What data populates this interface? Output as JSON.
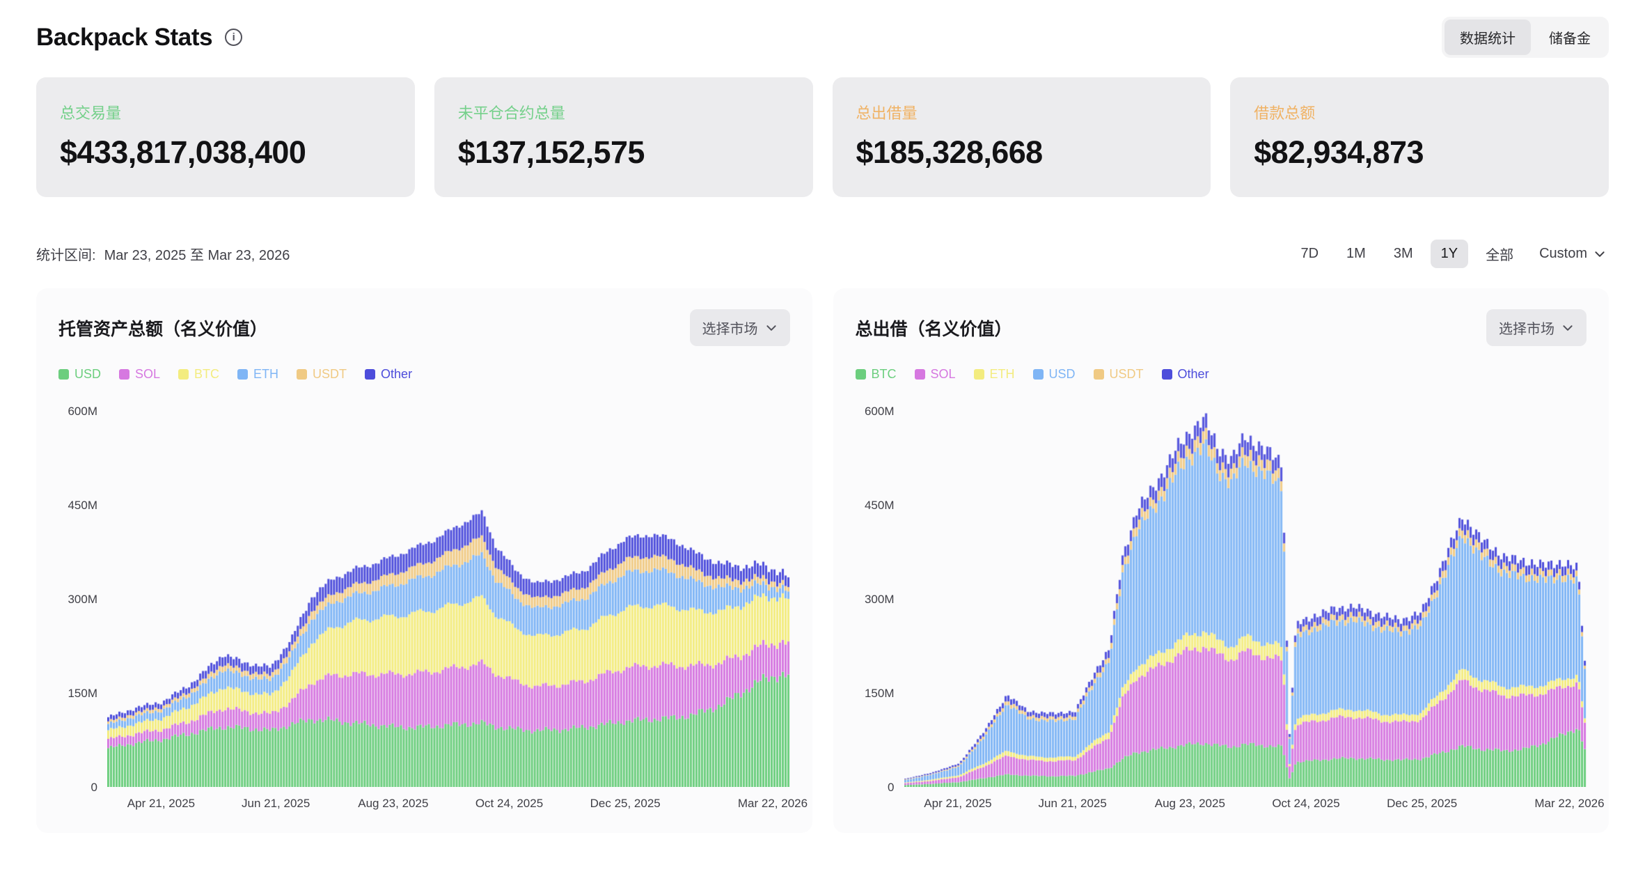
{
  "page": {
    "title": "Backpack Stats"
  },
  "header": {
    "tabs": [
      {
        "label": "数据统计",
        "active": true
      },
      {
        "label": "储备金",
        "active": false
      }
    ]
  },
  "stats": [
    {
      "label": "总交易量",
      "value": "$433,817,038,400",
      "label_color": "#74d08a"
    },
    {
      "label": "未平仓合约总量",
      "value": "$137,152,575",
      "label_color": "#74d08a"
    },
    {
      "label": "总出借量",
      "value": "$185,328,668",
      "label_color": "#f0b264"
    },
    {
      "label": "借款总额",
      "value": "$82,934,873",
      "label_color": "#f0b264"
    }
  ],
  "range_bar": {
    "prefix": "统计区间:",
    "range_text": "Mar 23, 2025 至 Mar 23, 2026",
    "options": [
      "7D",
      "1M",
      "3M",
      "1Y",
      "全部"
    ],
    "selected": "1Y",
    "custom_label": "Custom"
  },
  "chart_data": [
    {
      "type": "stacked_area",
      "title": "托管资产总额（名义价值）",
      "market_selector_label": "选择市场",
      "value_unit": "M",
      "ylim": [
        0,
        600
      ],
      "grid": false,
      "legend_position": "top",
      "y_ticks": [
        {
          "value": 0,
          "label": "0"
        },
        {
          "value": 150,
          "label": "150M"
        },
        {
          "value": 300,
          "label": "300M"
        },
        {
          "value": 450,
          "label": "450M"
        },
        {
          "value": 600,
          "label": "600M"
        }
      ],
      "x_ticks": [
        {
          "f": 0.079,
          "label": "Apr 21, 2025"
        },
        {
          "f": 0.247,
          "label": "Jun 21, 2025"
        },
        {
          "f": 0.419,
          "label": "Aug 23, 2025"
        },
        {
          "f": 0.589,
          "label": "Oct 24, 2025"
        },
        {
          "f": 0.759,
          "label": "Dec 25, 2025"
        },
        {
          "f": 0.975,
          "label": "Mar 22, 2026"
        }
      ],
      "x": [
        0,
        0.04,
        0.08,
        0.12,
        0.15,
        0.17,
        0.2,
        0.24,
        0.27,
        0.3,
        0.33,
        0.36,
        0.4,
        0.42,
        0.45,
        0.48,
        0.52,
        0.55,
        0.57,
        0.6,
        0.63,
        0.67,
        0.7,
        0.73,
        0.76,
        0.8,
        0.83,
        0.86,
        0.9,
        0.93,
        0.96,
        0.99,
        1.0
      ],
      "series": [
        {
          "name": "USD",
          "color": "#6cce7e",
          "values": [
            62,
            70,
            76,
            85,
            92,
            96,
            94,
            90,
            100,
            108,
            106,
            102,
            98,
            96,
            95,
            97,
            100,
            102,
            96,
            92,
            90,
            92,
            95,
            100,
            105,
            108,
            110,
            115,
            130,
            150,
            170,
            180,
            178
          ]
        },
        {
          "name": "SOL",
          "color": "#d678e0",
          "values": [
            14,
            15,
            16,
            20,
            26,
            30,
            27,
            26,
            38,
            60,
            72,
            78,
            82,
            84,
            86,
            88,
            92,
            95,
            85,
            76,
            70,
            72,
            74,
            80,
            85,
            86,
            84,
            78,
            68,
            60,
            55,
            52,
            50
          ]
        },
        {
          "name": "BTC",
          "color": "#f3ec7f",
          "values": [
            14,
            16,
            18,
            24,
            30,
            34,
            31,
            30,
            44,
            64,
            76,
            84,
            90,
            92,
            96,
            98,
            102,
            105,
            94,
            84,
            80,
            82,
            84,
            90,
            95,
            96,
            94,
            88,
            82,
            80,
            78,
            72,
            70
          ]
        },
        {
          "name": "ETH",
          "color": "#7fb5f5",
          "values": [
            10,
            12,
            13,
            18,
            24,
            28,
            25,
            24,
            30,
            38,
            40,
            42,
            46,
            50,
            54,
            58,
            64,
            68,
            56,
            48,
            44,
            46,
            48,
            52,
            56,
            57,
            54,
            48,
            38,
            28,
            20,
            14,
            12
          ]
        },
        {
          "name": "USDT",
          "color": "#f0ca84",
          "values": [
            4,
            5,
            5,
            6,
            8,
            9,
            8,
            8,
            10,
            13,
            14,
            15,
            17,
            18,
            20,
            22,
            26,
            28,
            22,
            18,
            16,
            17,
            18,
            20,
            22,
            22,
            21,
            18,
            14,
            12,
            10,
            8,
            7
          ]
        },
        {
          "name": "Other",
          "color": "#4d4ddb",
          "values": [
            7,
            8,
            8,
            10,
            13,
            15,
            13,
            13,
            16,
            22,
            24,
            25,
            27,
            28,
            30,
            32,
            36,
            40,
            32,
            26,
            24,
            25,
            26,
            30,
            33,
            34,
            32,
            28,
            24,
            22,
            21,
            18,
            16
          ]
        }
      ]
    },
    {
      "type": "stacked_area",
      "title": "总出借（名义价值）",
      "market_selector_label": "选择市场",
      "value_unit": "M",
      "ylim": [
        0,
        600
      ],
      "grid": false,
      "legend_position": "top",
      "y_ticks": [
        {
          "value": 0,
          "label": "0"
        },
        {
          "value": 150,
          "label": "150M"
        },
        {
          "value": 300,
          "label": "300M"
        },
        {
          "value": 450,
          "label": "450M"
        },
        {
          "value": 600,
          "label": "600M"
        }
      ],
      "x_ticks": [
        {
          "f": 0.079,
          "label": "Apr 21, 2025"
        },
        {
          "f": 0.247,
          "label": "Jun 21, 2025"
        },
        {
          "f": 0.419,
          "label": "Aug 23, 2025"
        },
        {
          "f": 0.589,
          "label": "Oct 24, 2025"
        },
        {
          "f": 0.759,
          "label": "Dec 25, 2025"
        },
        {
          "f": 0.975,
          "label": "Mar 22, 2026"
        }
      ],
      "x": [
        0,
        0.04,
        0.08,
        0.12,
        0.15,
        0.18,
        0.22,
        0.25,
        0.28,
        0.3,
        0.32,
        0.34,
        0.37,
        0.4,
        0.42,
        0.44,
        0.46,
        0.48,
        0.5,
        0.53,
        0.555,
        0.565,
        0.575,
        0.6,
        0.63,
        0.66,
        0.7,
        0.73,
        0.76,
        0.79,
        0.82,
        0.85,
        0.88,
        0.91,
        0.94,
        0.97,
        0.99,
        1.0
      ],
      "series": [
        {
          "name": "BTC",
          "color": "#6cce7e",
          "values": [
            3,
            5,
            8,
            15,
            20,
            18,
            17,
            18,
            25,
            30,
            45,
            55,
            60,
            65,
            68,
            70,
            66,
            64,
            68,
            66,
            64,
            12,
            40,
            42,
            45,
            46,
            44,
            43,
            45,
            55,
            65,
            60,
            58,
            60,
            70,
            85,
            95,
            60
          ]
        },
        {
          "name": "SOL",
          "color": "#d678e0",
          "values": [
            3,
            5,
            8,
            20,
            30,
            25,
            24,
            25,
            40,
            50,
            95,
            120,
            130,
            145,
            150,
            155,
            145,
            140,
            148,
            142,
            138,
            18,
            60,
            62,
            65,
            66,
            62,
            60,
            63,
            85,
            105,
            95,
            88,
            85,
            80,
            75,
            72,
            40
          ]
        },
        {
          "name": "ETH",
          "color": "#f3ec7f",
          "values": [
            1,
            2,
            3,
            5,
            8,
            6,
            6,
            6,
            9,
            10,
            15,
            18,
            20,
            22,
            24,
            25,
            22,
            21,
            23,
            22,
            21,
            3,
            10,
            11,
            12,
            12,
            11,
            11,
            11,
            14,
            17,
            15,
            14,
            14,
            13,
            13,
            12,
            7
          ]
        },
        {
          "name": "USD",
          "color": "#7fb5f5",
          "values": [
            4,
            8,
            14,
            45,
            75,
            60,
            58,
            60,
            95,
            110,
            185,
            215,
            240,
            270,
            285,
            295,
            270,
            260,
            280,
            268,
            258,
            35,
            130,
            135,
            140,
            142,
            135,
            132,
            138,
            175,
            215,
            195,
            182,
            175,
            168,
            160,
            150,
            80
          ]
        },
        {
          "name": "USDT",
          "color": "#f0ca84",
          "values": [
            1,
            1,
            2,
            4,
            6,
            5,
            5,
            5,
            7,
            8,
            12,
            14,
            15,
            17,
            18,
            19,
            17,
            16,
            18,
            17,
            16,
            2,
            8,
            9,
            9,
            9,
            9,
            8,
            9,
            11,
            13,
            12,
            11,
            11,
            10,
            10,
            9,
            5
          ]
        },
        {
          "name": "Other",
          "color": "#4d4ddb",
          "values": [
            1,
            2,
            3,
            6,
            9,
            7,
            7,
            7,
            10,
            12,
            16,
            18,
            20,
            22,
            23,
            24,
            22,
            21,
            23,
            22,
            21,
            4,
            12,
            13,
            13,
            13,
            13,
            12,
            13,
            15,
            17,
            16,
            15,
            15,
            14,
            14,
            13,
            8
          ]
        }
      ]
    }
  ]
}
